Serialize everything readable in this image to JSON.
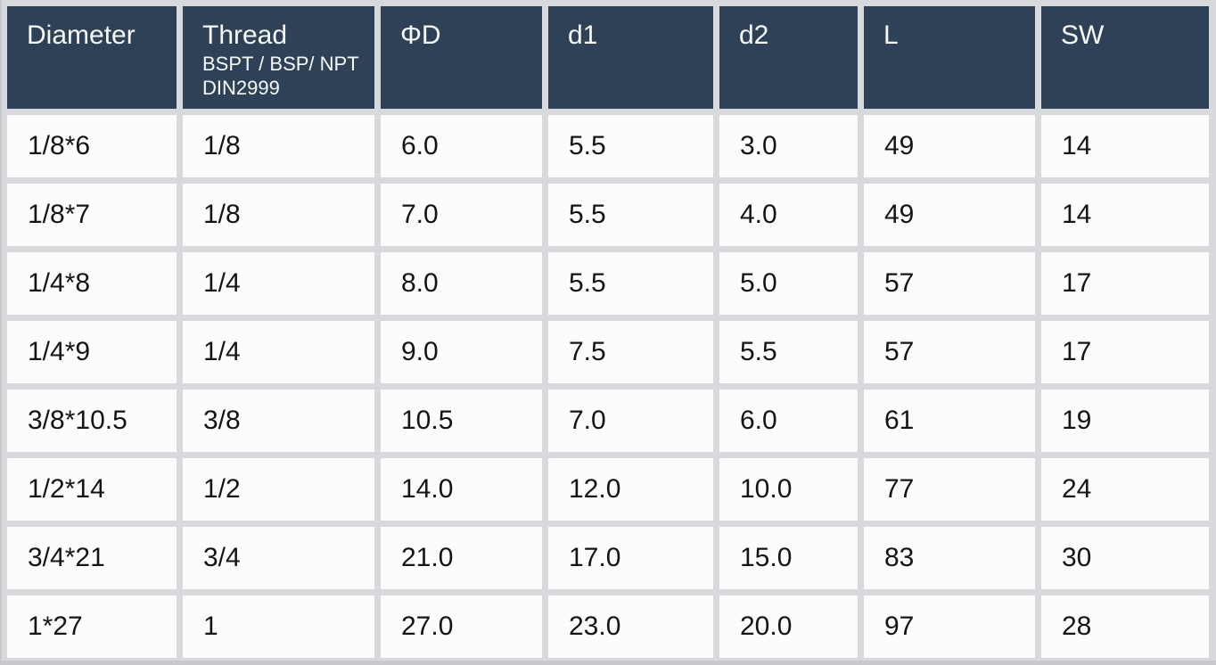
{
  "colors": {
    "header_background": "#2e4156",
    "header_text": "#f7f9fa",
    "cell_background": "#fcfcfd",
    "page_background": "#d7d9dd",
    "cell_text": "#141414"
  },
  "table": {
    "columns": [
      {
        "id": "diameter",
        "label": "Diameter"
      },
      {
        "id": "thread",
        "label": "Thread",
        "sub_line1": "BSPT / BSP/ NPT",
        "sub_line2": "DIN2999"
      },
      {
        "id": "phi-d",
        "label": "ΦD"
      },
      {
        "id": "d1",
        "label": "d1"
      },
      {
        "id": "d2",
        "label": "d2"
      },
      {
        "id": "l",
        "label": "L"
      },
      {
        "id": "sw",
        "label": "SW"
      }
    ],
    "rows": [
      {
        "cells": [
          "1/8*6",
          "1/8",
          "6.0",
          "5.5",
          "3.0",
          "49",
          "14"
        ]
      },
      {
        "cells": [
          "1/8*7",
          "1/8",
          "7.0",
          "5.5",
          "4.0",
          "49",
          "14"
        ]
      },
      {
        "cells": [
          "1/4*8",
          "1/4",
          "8.0",
          "5.5",
          "5.0",
          "57",
          "17"
        ]
      },
      {
        "cells": [
          "1/4*9",
          "1/4",
          "9.0",
          "7.5",
          "5.5",
          "57",
          "17"
        ]
      },
      {
        "cells": [
          "3/8*10.5",
          "3/8",
          "10.5",
          "7.0",
          "6.0",
          "61",
          "19"
        ]
      },
      {
        "cells": [
          "1/2*14",
          "1/2",
          "14.0",
          "12.0",
          "10.0",
          "77",
          "24"
        ]
      },
      {
        "cells": [
          "3/4*21",
          "3/4",
          "21.0",
          "17.0",
          "15.0",
          "83",
          "30"
        ]
      },
      {
        "cells": [
          "1*27",
          "1",
          "27.0",
          "23.0",
          "20.0",
          "97",
          "28"
        ]
      }
    ]
  }
}
